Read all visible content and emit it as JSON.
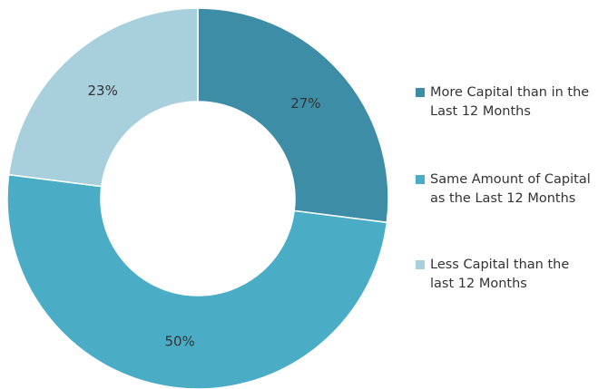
{
  "chart_data": {
    "type": "pie",
    "title": "",
    "categories": [
      "More Capital than in the Last 12 Months",
      "Same Amount of Capital as the Last 12 Months",
      "Less Capital than the last 12 Months"
    ],
    "values": [
      27,
      50,
      23
    ],
    "labels": [
      "27%",
      "50%",
      "23%"
    ],
    "colors": [
      "#3D8DA6",
      "#4BACC6",
      "#A8CFDC"
    ],
    "donut": true,
    "legend_position": "right"
  },
  "legend": {
    "items": [
      {
        "label": "More Capital than in the Last 12 Months",
        "color": "#3D8DA6"
      },
      {
        "label": "Same Amount of Capital as the Last 12 Months",
        "color": "#4BACC6"
      },
      {
        "label": "Less Capital than the last 12 Months",
        "color": "#A8CFDC"
      }
    ]
  }
}
